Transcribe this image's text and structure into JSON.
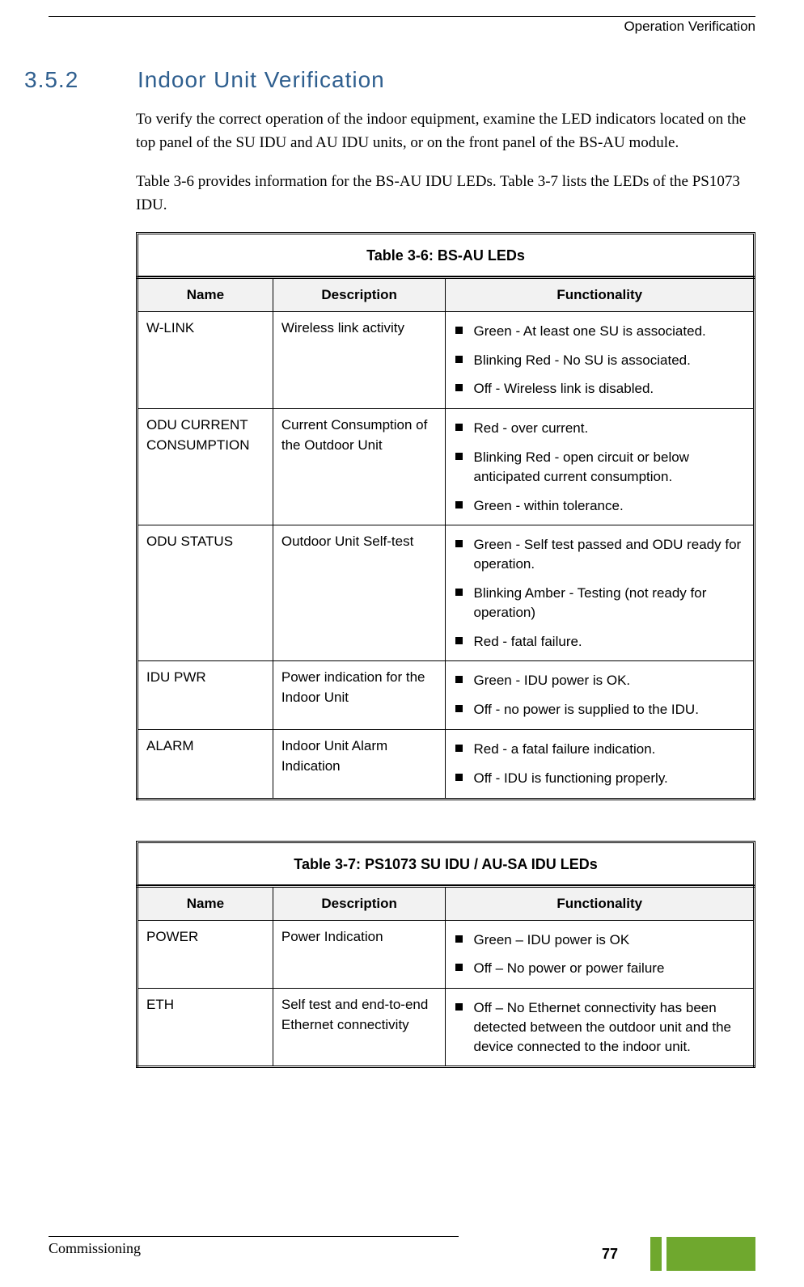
{
  "header": {
    "right": "Operation Verification"
  },
  "section": {
    "number": "3.5.2",
    "title": "Indoor Unit Verification"
  },
  "paragraphs": {
    "p1": "To verify the correct operation of the indoor equipment, examine the LED indicators located on the top panel of the SU IDU and AU IDU units, or on the front panel of the BS-AU module.",
    "p2": "Table 3-6 provides information for the BS-AU IDU LEDs. Table 3-7 lists the LEDs of the PS1073 IDU."
  },
  "table36": {
    "caption": "Table 3-6: BS-AU LEDs",
    "headers": {
      "name": "Name",
      "desc": "Description",
      "func": "Functionality"
    },
    "rows": [
      {
        "name": "W-LINK",
        "desc": "Wireless link activity",
        "func": [
          "Green - At least one SU is associated.",
          "Blinking Red - No SU is associated.",
          "Off - Wireless link is disabled."
        ]
      },
      {
        "name": "ODU CURRENT CONSUMPTION",
        "desc": "Current Consumption of the Outdoor Unit",
        "func": [
          "Red - over current.",
          "Blinking Red - open circuit or below anticipated current consumption.",
          "Green - within tolerance."
        ]
      },
      {
        "name": "ODU STATUS",
        "desc": "Outdoor Unit Self-test",
        "func": [
          "Green - Self test passed and ODU ready for operation.",
          "Blinking Amber  - Testing  (not ready for operation)",
          "Red - fatal failure."
        ]
      },
      {
        "name": "IDU PWR",
        "desc": "Power indication for the Indoor Unit",
        "func": [
          "Green - IDU power is OK.",
          "Off - no power is supplied to the IDU."
        ]
      },
      {
        "name": "ALARM",
        "desc": "Indoor Unit Alarm Indication",
        "func": [
          "Red - a fatal failure indication.",
          "Off - IDU is functioning properly."
        ]
      }
    ]
  },
  "table37": {
    "caption": "Table 3-7: PS1073 SU IDU / AU-SA IDU LEDs",
    "headers": {
      "name": "Name",
      "desc": "Description",
      "func": "Functionality"
    },
    "rows": [
      {
        "name": "POWER",
        "desc": "Power Indication",
        "func": [
          "Green – IDU power is OK",
          "Off – No power or power failure"
        ]
      },
      {
        "name": "ETH",
        "desc": "Self test and end-to-end Ethernet connectivity",
        "func": [
          "Off – No Ethernet connectivity has been detected between the outdoor unit and the device connected to the indoor unit."
        ]
      }
    ]
  },
  "footer": {
    "left": "Commissioning",
    "pagenum": "77"
  },
  "colors": {
    "heading": "#2f5f8f",
    "accent_bar": "#6fa82e",
    "header_bg": "#f2f2f2"
  }
}
